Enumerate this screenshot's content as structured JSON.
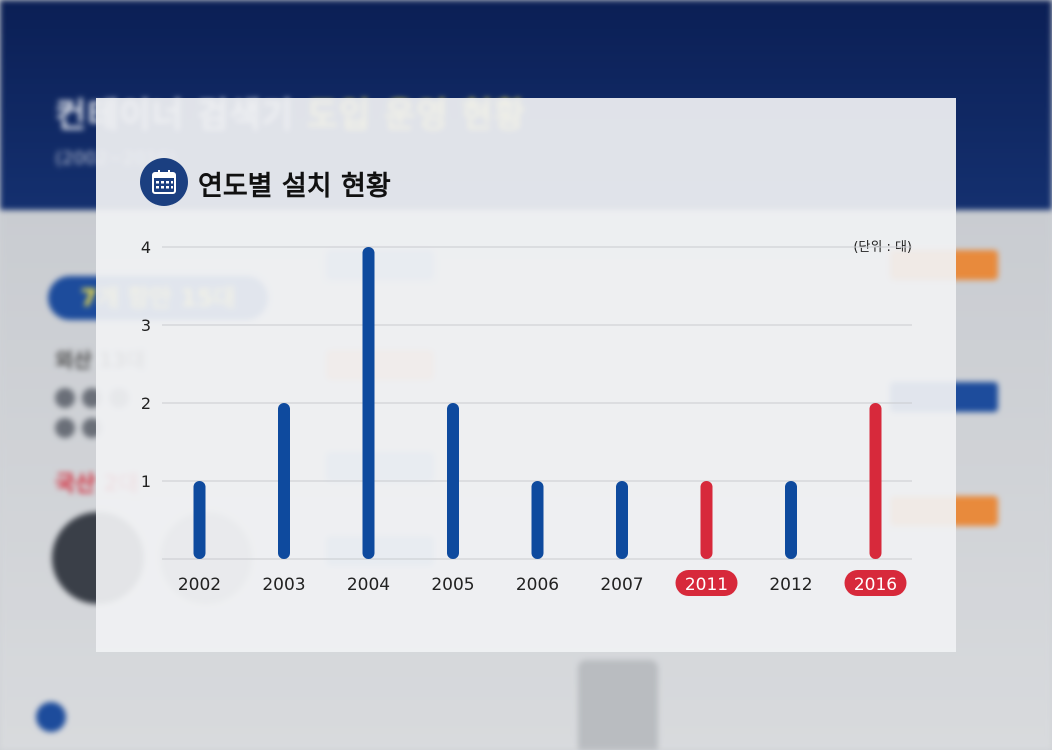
{
  "card": {
    "title": "연도별 설치 현황",
    "title_icon": "calendar-icon",
    "unit_note": "(단위 : 대)"
  },
  "colors": {
    "bar_default": "#0e4a9e",
    "bar_highlight": "#d7293b",
    "title_icon_bg": "#1b3f80"
  },
  "chart_data": {
    "type": "bar",
    "categories": [
      "2002",
      "2003",
      "2004",
      "2005",
      "2006",
      "2007",
      "2011",
      "2012",
      "2016"
    ],
    "values": [
      1,
      2,
      4,
      2,
      1,
      1,
      1,
      1,
      2
    ],
    "highlighted": [
      "2011",
      "2016"
    ],
    "yticks": [
      1,
      2,
      3,
      4
    ],
    "ylim": [
      0,
      4
    ],
    "grid": true,
    "legend": "none"
  }
}
